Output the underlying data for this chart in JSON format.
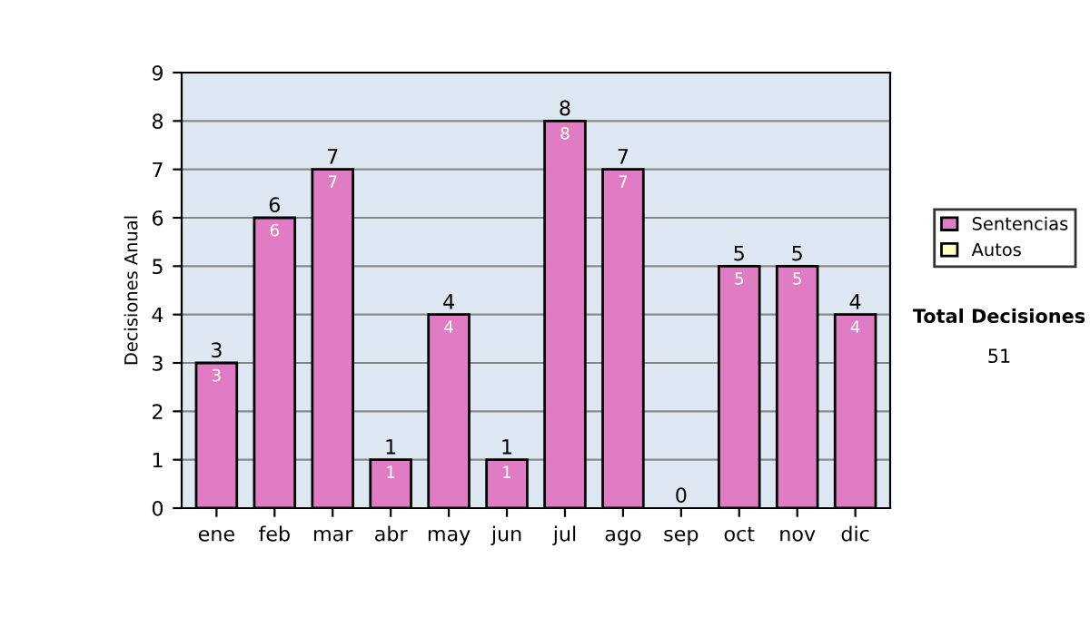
{
  "chart_data": {
    "type": "bar",
    "stacked": true,
    "ylabel": "Decisiones Anual",
    "categories": [
      "ene",
      "feb",
      "mar",
      "abr",
      "may",
      "jun",
      "jul",
      "ago",
      "sep",
      "oct",
      "nov",
      "dic"
    ],
    "series": [
      {
        "name": "Sentencias",
        "color": "#e07cc4",
        "values": [
          3,
          6,
          7,
          1,
          4,
          1,
          8,
          7,
          0,
          5,
          5,
          4
        ],
        "value_labels": [
          "3",
          "6",
          "7",
          "1",
          "4",
          "1",
          "8",
          "7",
          null,
          "5",
          "5",
          "4"
        ]
      },
      {
        "name": "Autos",
        "color": "#ffffc0",
        "values": [
          0,
          0,
          0,
          0,
          0,
          0,
          0,
          0,
          0,
          0,
          0,
          0
        ]
      }
    ],
    "totals": [
      "3",
      "6",
      "7",
      "1",
      "4",
      "1",
      "8",
      "7",
      "0",
      "5",
      "5",
      "4"
    ],
    "ylim": [
      0,
      9
    ],
    "yticks": [
      0,
      1,
      2,
      3,
      4,
      5,
      6,
      7,
      8,
      9
    ],
    "grid": "y",
    "legend": "right",
    "annotations": [
      "Total Decisiones",
      "51"
    ]
  }
}
